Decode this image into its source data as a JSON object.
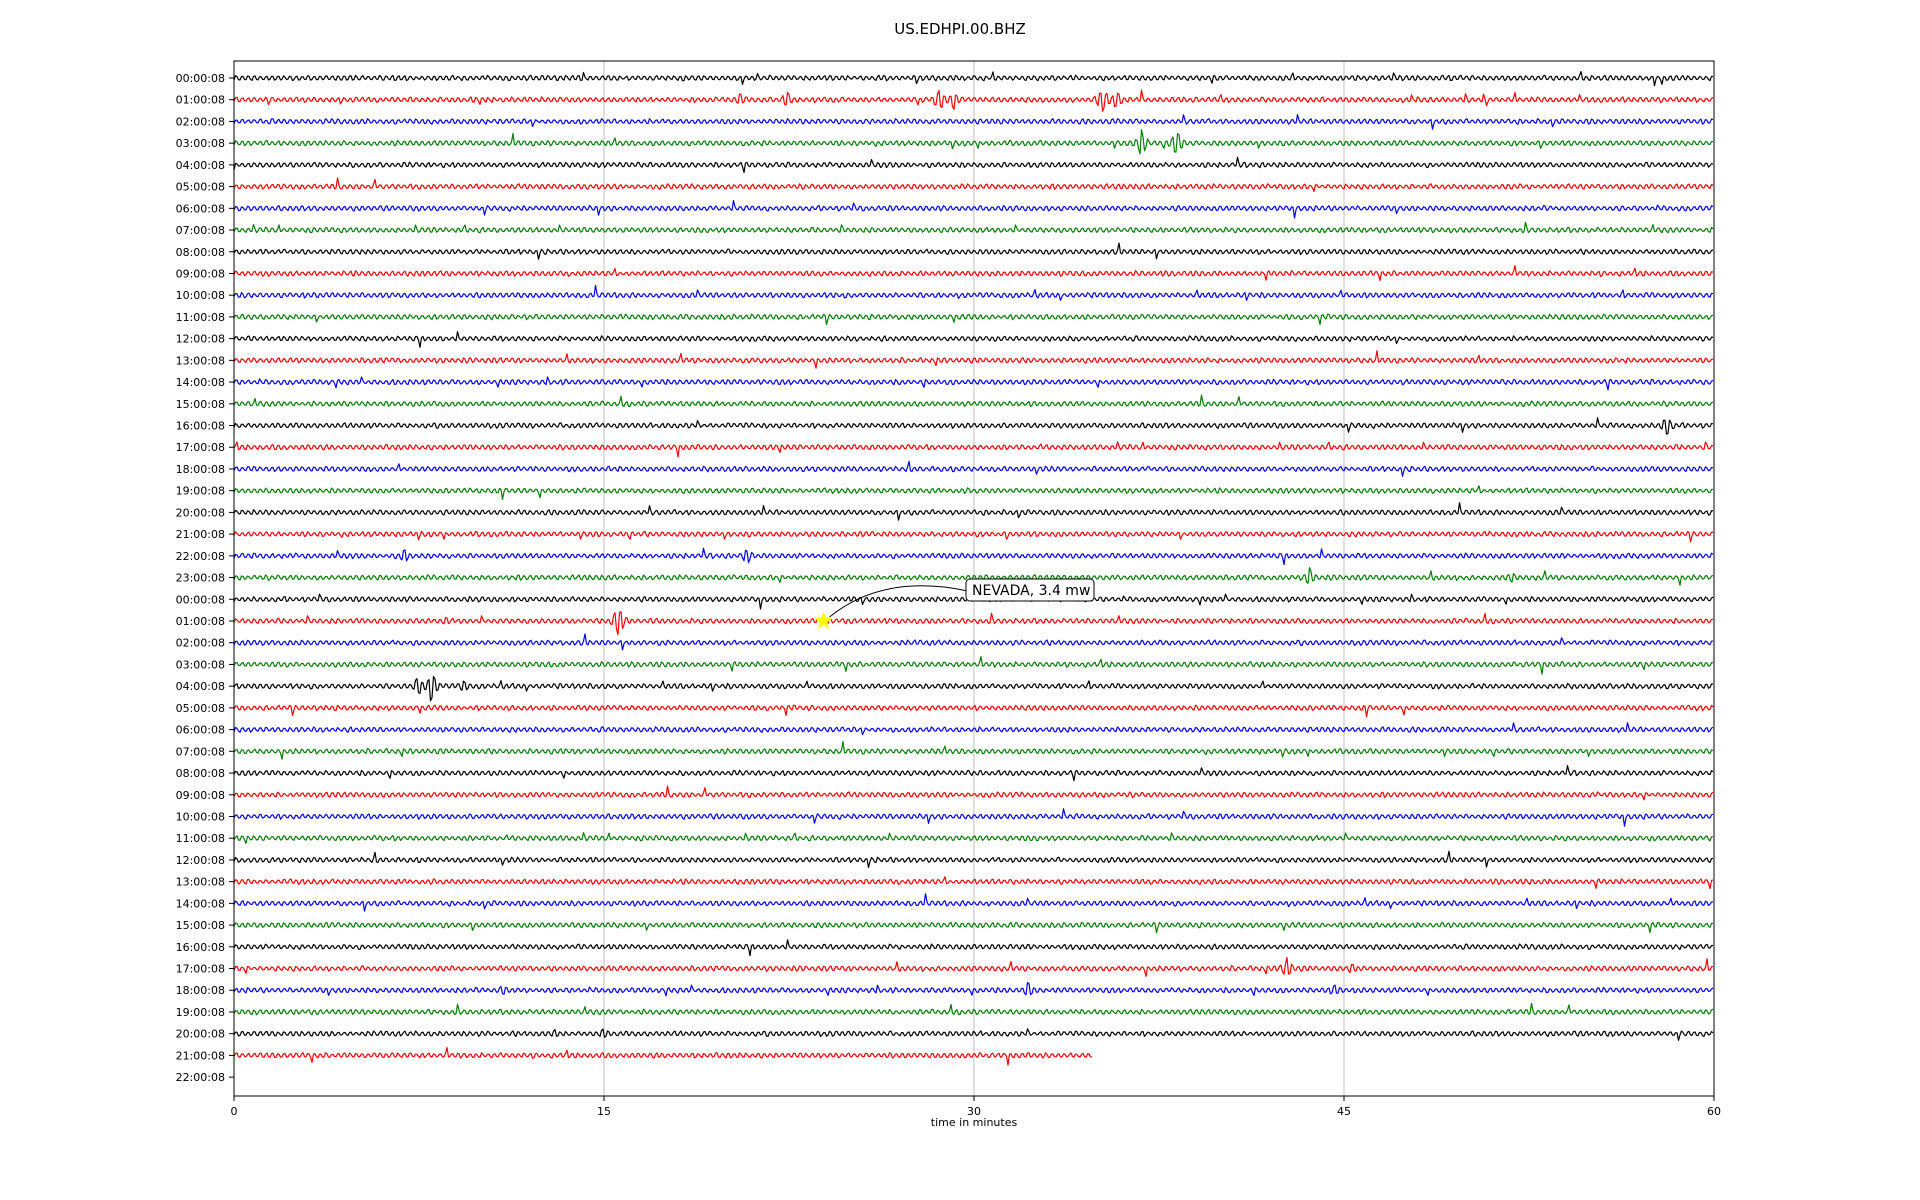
{
  "chart_data": {
    "type": "line",
    "title": "US.EDHPI.00.BHZ",
    "xlabel": "time in minutes",
    "xlim": [
      0,
      60
    ],
    "x_ticks": [
      0,
      15,
      30,
      45,
      60
    ],
    "row_labels": [
      "00:00:08",
      "01:00:08",
      "02:00:08",
      "03:00:08",
      "04:00:08",
      "05:00:08",
      "06:00:08",
      "07:00:08",
      "08:00:08",
      "09:00:08",
      "10:00:08",
      "11:00:08",
      "12:00:08",
      "13:00:08",
      "14:00:08",
      "15:00:08",
      "16:00:08",
      "17:00:08",
      "18:00:08",
      "19:00:08",
      "20:00:08",
      "21:00:08",
      "22:00:08",
      "23:00:08",
      "00:00:08",
      "01:00:08",
      "02:00:08",
      "03:00:08",
      "04:00:08",
      "05:00:08",
      "06:00:08",
      "07:00:08",
      "08:00:08",
      "09:00:08",
      "10:00:08",
      "11:00:08",
      "12:00:08",
      "13:00:08",
      "14:00:08",
      "15:00:08",
      "16:00:08",
      "17:00:08",
      "18:00:08",
      "19:00:08",
      "20:00:08",
      "21:00:08",
      "22:00:08"
    ],
    "trace_colors": [
      "#000000",
      "#ff0000",
      "#0000ff",
      "#008000"
    ],
    "trace_end_minutes": [
      60,
      60,
      60,
      60,
      60,
      60,
      60,
      60,
      60,
      60,
      60,
      60,
      60,
      60,
      60,
      60,
      60,
      60,
      60,
      60,
      60,
      60,
      60,
      60,
      60,
      60,
      60,
      60,
      60,
      60,
      60,
      60,
      60,
      60,
      60,
      60,
      60,
      60,
      60,
      60,
      60,
      60,
      60,
      60,
      60,
      34.8,
      0
    ],
    "events": [
      {
        "row": 1,
        "minute": 20.5,
        "amp": 0.4
      },
      {
        "row": 1,
        "minute": 22.4,
        "amp": 0.6
      },
      {
        "row": 1,
        "minute": 28.6,
        "amp": 0.9
      },
      {
        "row": 1,
        "minute": 29.2,
        "amp": 0.7
      },
      {
        "row": 1,
        "minute": 35.2,
        "amp": 1.1
      },
      {
        "row": 1,
        "minute": 35.8,
        "amp": 0.8
      },
      {
        "row": 3,
        "minute": 36.8,
        "amp": 1.0
      },
      {
        "row": 3,
        "minute": 38.2,
        "amp": 1.0
      },
      {
        "row": 16,
        "minute": 58.1,
        "amp": 0.8
      },
      {
        "row": 22,
        "minute": 6.9,
        "amp": 0.6
      },
      {
        "row": 22,
        "minute": 20.8,
        "amp": 0.6
      },
      {
        "row": 23,
        "minute": 43.6,
        "amp": 0.7
      },
      {
        "row": 23,
        "minute": 51.8,
        "amp": 0.4
      },
      {
        "row": 25,
        "minute": 15.6,
        "amp": 1.2
      },
      {
        "row": 25,
        "minute": 8.6,
        "amp": 0.3
      },
      {
        "row": 28,
        "minute": 7.5,
        "amp": 0.8
      },
      {
        "row": 28,
        "minute": 8.0,
        "amp": 1.2
      },
      {
        "row": 28,
        "minute": 9.3,
        "amp": 0.5
      },
      {
        "row": 41,
        "minute": 42.7,
        "amp": 0.8
      },
      {
        "row": 41,
        "minute": 45.3,
        "amp": 0.4
      },
      {
        "row": 42,
        "minute": 10.9,
        "amp": 0.4
      },
      {
        "row": 42,
        "minute": 32.2,
        "amp": 0.6
      },
      {
        "row": 42,
        "minute": 44.6,
        "amp": 0.5
      },
      {
        "row": 44,
        "minute": 13.0,
        "amp": 0.4
      },
      {
        "row": 44,
        "minute": 15.0,
        "amp": 0.4
      }
    ],
    "annotation": {
      "text": "NEVADA, 3.4 mw",
      "row": 25,
      "minute": 23.9,
      "marker_color": "#ffff00"
    },
    "grid": "vertical at x ticks"
  }
}
